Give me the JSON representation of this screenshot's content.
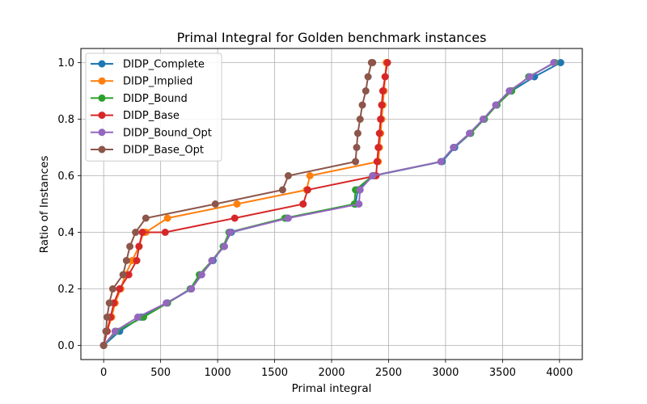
{
  "chart_data": {
    "type": "line",
    "title": "Primal Integral for Golden benchmark instances",
    "xlabel": "Primal integral",
    "ylabel": "Ratio of Instances",
    "xlim": [
      -200,
      4200
    ],
    "ylim": [
      -0.05,
      1.05
    ],
    "xticks": [
      "0",
      "500",
      "1000",
      "1500",
      "2000",
      "2500",
      "3000",
      "3500",
      "4000"
    ],
    "yticks": [
      "0.0",
      "0.2",
      "0.4",
      "0.6",
      "0.8",
      "1.0"
    ],
    "grid": true,
    "legend_position": "top-left",
    "series": [
      {
        "name": "DIDP_Complete",
        "color": "#1f77b4",
        "x": [
          0,
          140,
          330,
          560,
          770,
          850,
          960,
          1050,
          1120,
          1610,
          2210,
          2230,
          2370,
          2970,
          3080,
          3220,
          3340,
          3450,
          3580,
          3780,
          4010
        ],
        "y": [
          0.0,
          0.05,
          0.1,
          0.15,
          0.2,
          0.25,
          0.3,
          0.35,
          0.4,
          0.45,
          0.5,
          0.55,
          0.6,
          0.65,
          0.7,
          0.75,
          0.8,
          0.85,
          0.9,
          0.95,
          1.0
        ]
      },
      {
        "name": "DIDP_Implied",
        "color": "#ff7f0e",
        "x": [
          0,
          30,
          70,
          100,
          150,
          190,
          250,
          310,
          350,
          370,
          560,
          1170,
          1780,
          1810,
          2410,
          2420,
          2430,
          2440,
          2450,
          2460,
          2470,
          2480
        ],
        "y": [
          0.0,
          0.05,
          0.1,
          0.15,
          0.2,
          0.25,
          0.3,
          0.35,
          0.4,
          0.4,
          0.45,
          0.5,
          0.55,
          0.6,
          0.65,
          0.7,
          0.75,
          0.8,
          0.85,
          0.9,
          0.95,
          1.0
        ]
      },
      {
        "name": "DIDP_Bound",
        "color": "#2ca02c",
        "x": [
          0,
          110,
          350,
          560,
          760,
          840,
          950,
          1050,
          1100,
          1590,
          2200,
          2210,
          2360,
          2960,
          3070,
          3220,
          3340,
          3450,
          3580,
          3730,
          3960
        ],
        "y": [
          0.0,
          0.05,
          0.1,
          0.15,
          0.2,
          0.25,
          0.3,
          0.35,
          0.4,
          0.45,
          0.5,
          0.55,
          0.6,
          0.65,
          0.7,
          0.75,
          0.8,
          0.85,
          0.9,
          0.95,
          1.0
        ]
      },
      {
        "name": "DIDP_Base",
        "color": "#d62728",
        "x": [
          0,
          30,
          60,
          90,
          140,
          220,
          290,
          310,
          340,
          540,
          1150,
          1750,
          1790,
          2390,
          2400,
          2410,
          2420,
          2430,
          2440,
          2450,
          2470,
          2490
        ],
        "y": [
          0.0,
          0.05,
          0.1,
          0.15,
          0.2,
          0.25,
          0.3,
          0.35,
          0.4,
          0.4,
          0.45,
          0.5,
          0.55,
          0.6,
          0.65,
          0.7,
          0.75,
          0.8,
          0.85,
          0.9,
          0.95,
          1.0
        ]
      },
      {
        "name": "DIDP_Bound_Opt",
        "color": "#9467bd",
        "x": [
          0,
          100,
          300,
          550,
          770,
          860,
          950,
          1060,
          1110,
          1620,
          2240,
          2250,
          2360,
          2960,
          3070,
          3210,
          3330,
          3440,
          3560,
          3740,
          3950
        ],
        "y": [
          0.0,
          0.05,
          0.1,
          0.15,
          0.2,
          0.25,
          0.3,
          0.35,
          0.4,
          0.45,
          0.5,
          0.55,
          0.6,
          0.65,
          0.7,
          0.75,
          0.8,
          0.85,
          0.9,
          0.95,
          1.0
        ]
      },
      {
        "name": "DIDP_Base_Opt",
        "color": "#8c564b",
        "x": [
          0,
          20,
          30,
          50,
          80,
          170,
          200,
          230,
          280,
          370,
          980,
          1570,
          1620,
          2210,
          2220,
          2230,
          2250,
          2270,
          2300,
          2320,
          2350,
          2360
        ],
        "y": [
          0.0,
          0.05,
          0.1,
          0.15,
          0.2,
          0.25,
          0.3,
          0.35,
          0.4,
          0.45,
          0.5,
          0.55,
          0.6,
          0.65,
          0.7,
          0.75,
          0.8,
          0.85,
          0.9,
          0.95,
          1.0,
          1.0
        ]
      }
    ]
  }
}
